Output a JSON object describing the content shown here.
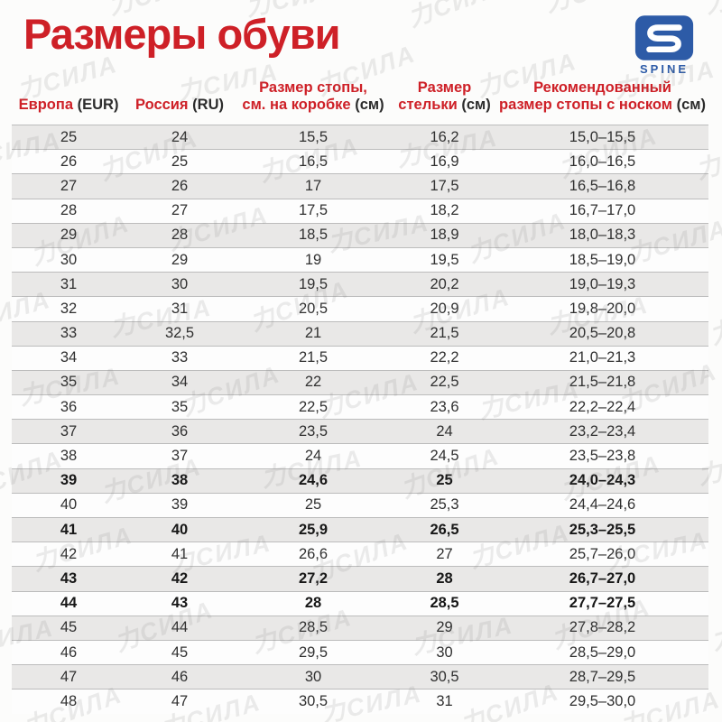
{
  "page": {
    "title": "Размеры обуви"
  },
  "logo": {
    "brand": "SPINE",
    "color": "#2d5ba7"
  },
  "watermark": {
    "text": "力СИЛА"
  },
  "colors": {
    "accent_red": "#ce2027",
    "row_stripe": "#e9e8e7",
    "row_border": "#bcbcbc",
    "body_text": "#303030",
    "logo_blue": "#2d5ba7"
  },
  "table": {
    "headers": [
      {
        "line1_red": "Европа",
        "line1_black": "(EUR)"
      },
      {
        "line1_red": "Россия",
        "line1_black": "(RU)"
      },
      {
        "line1_red": "Размер стопы,",
        "line2_red": "см. на коробке",
        "line2_black": "(см)"
      },
      {
        "line1_red": "Размер",
        "line2_red": "стельки",
        "line2_black": "(см)"
      },
      {
        "line1_red": "Рекомендованный",
        "line2_red": "размер стопы с носком",
        "line2_black": "(см)"
      }
    ],
    "rows": [
      {
        "eur": "25",
        "ru": "24",
        "box": "15,5",
        "insole": "16,2",
        "rec": "15,0–15,5",
        "bold": false
      },
      {
        "eur": "26",
        "ru": "25",
        "box": "16,5",
        "insole": "16,9",
        "rec": "16,0–16,5",
        "bold": false
      },
      {
        "eur": "27",
        "ru": "26",
        "box": "17",
        "insole": "17,5",
        "rec": "16,5–16,8",
        "bold": false
      },
      {
        "eur": "28",
        "ru": "27",
        "box": "17,5",
        "insole": "18,2",
        "rec": "16,7–17,0",
        "bold": false
      },
      {
        "eur": "29",
        "ru": "28",
        "box": "18,5",
        "insole": "18,9",
        "rec": "18,0–18,3",
        "bold": false
      },
      {
        "eur": "30",
        "ru": "29",
        "box": "19",
        "insole": "19,5",
        "rec": "18,5–19,0",
        "bold": false
      },
      {
        "eur": "31",
        "ru": "30",
        "box": "19,5",
        "insole": "20,2",
        "rec": "19,0–19,3",
        "bold": false
      },
      {
        "eur": "32",
        "ru": "31",
        "box": "20,5",
        "insole": "20,9",
        "rec": "19,8–20,0",
        "bold": false
      },
      {
        "eur": "33",
        "ru": "32,5",
        "box": "21",
        "insole": "21,5",
        "rec": "20,5–20,8",
        "bold": false
      },
      {
        "eur": "34",
        "ru": "33",
        "box": "21,5",
        "insole": "22,2",
        "rec": "21,0–21,3",
        "bold": false
      },
      {
        "eur": "35",
        "ru": "34",
        "box": "22",
        "insole": "22,5",
        "rec": "21,5–21,8",
        "bold": false
      },
      {
        "eur": "36",
        "ru": "35",
        "box": "22,5",
        "insole": "23,6",
        "rec": "22,2–22,4",
        "bold": false
      },
      {
        "eur": "37",
        "ru": "36",
        "box": "23,5",
        "insole": "24",
        "rec": "23,2–23,4",
        "bold": false
      },
      {
        "eur": "38",
        "ru": "37",
        "box": "24",
        "insole": "24,5",
        "rec": "23,5–23,8",
        "bold": false
      },
      {
        "eur": "39",
        "ru": "38",
        "box": "24,6",
        "insole": "25",
        "rec": "24,0–24,3",
        "bold": true
      },
      {
        "eur": "40",
        "ru": "39",
        "box": "25",
        "insole": "25,3",
        "rec": "24,4–24,6",
        "bold": false
      },
      {
        "eur": "41",
        "ru": "40",
        "box": "25,9",
        "insole": "26,5",
        "rec": "25,3–25,5",
        "bold": true
      },
      {
        "eur": "42",
        "ru": "41",
        "box": "26,6",
        "insole": "27",
        "rec": "25,7–26,0",
        "bold": false
      },
      {
        "eur": "43",
        "ru": "42",
        "box": "27,2",
        "insole": "28",
        "rec": "26,7–27,0",
        "bold": true
      },
      {
        "eur": "44",
        "ru": "43",
        "box": "28",
        "insole": "28,5",
        "rec": "27,7–27,5",
        "bold": true
      },
      {
        "eur": "45",
        "ru": "44",
        "box": "28,5",
        "insole": "29",
        "rec": "27,8–28,2",
        "bold": false
      },
      {
        "eur": "46",
        "ru": "45",
        "box": "29,5",
        "insole": "30",
        "rec": "28,5–29,0",
        "bold": false
      },
      {
        "eur": "47",
        "ru": "46",
        "box": "30",
        "insole": "30,5",
        "rec": "28,7–29,5",
        "bold": false
      },
      {
        "eur": "48",
        "ru": "47",
        "box": "30,5",
        "insole": "31",
        "rec": "29,5–30,0",
        "bold": false
      }
    ]
  }
}
